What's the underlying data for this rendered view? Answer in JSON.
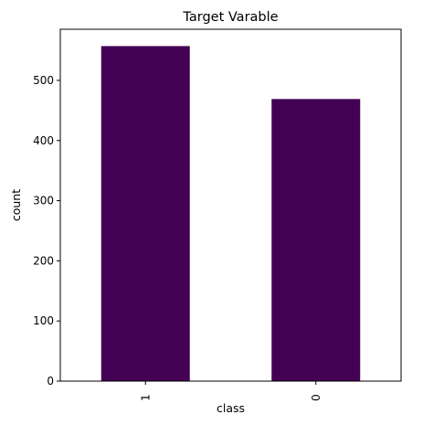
{
  "chart_data": {
    "type": "bar",
    "title": "Target Varable",
    "xlabel": "class",
    "ylabel": "count",
    "categories": [
      "1",
      "0"
    ],
    "values": [
      557,
      469
    ],
    "ylim": [
      0,
      585
    ],
    "yticks": [
      0,
      100,
      200,
      300,
      400,
      500
    ],
    "grid": false,
    "bar_color": "#440154"
  }
}
